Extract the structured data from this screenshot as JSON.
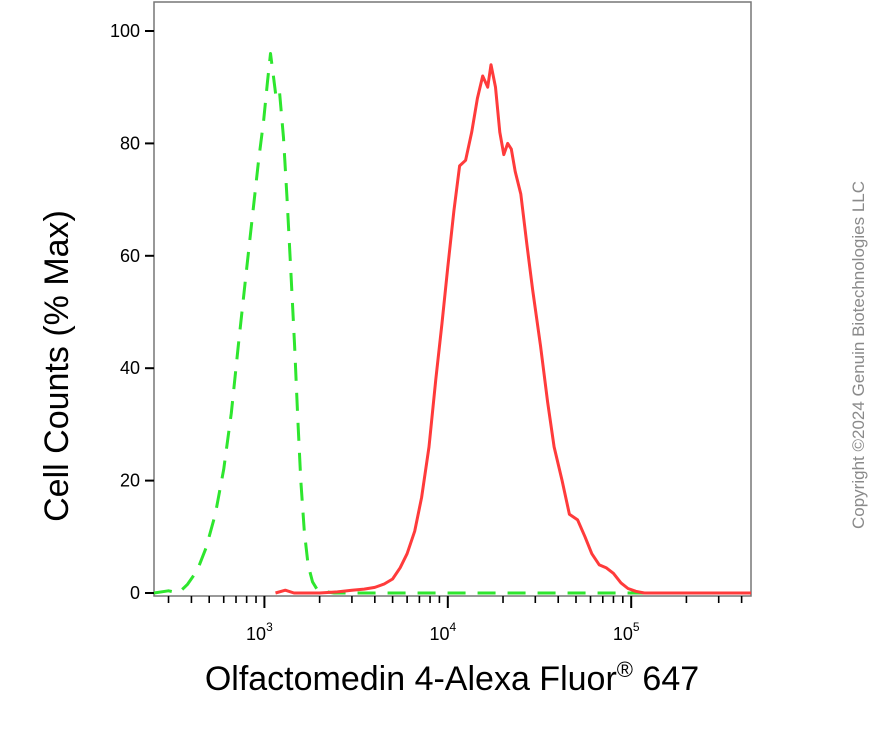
{
  "chart_data": {
    "type": "line",
    "title": "",
    "xlabel_main": "Olfactomedin 4-Alexa Fluor",
    "xlabel_reg": "®",
    "xlabel_tail": " 647",
    "ylabel": "Cell Counts (% Max)",
    "x_scale": "log",
    "xlim": [
      250,
      450000
    ],
    "ylim": [
      0,
      100
    ],
    "y_ticks": [
      0,
      20,
      40,
      60,
      80,
      100
    ],
    "y_tick_labels": [
      "0",
      "20",
      "40",
      "60",
      "80",
      "100"
    ],
    "x_major_ticks": [
      {
        "value": 1000,
        "base": "10",
        "exp": "3"
      },
      {
        "value": 10000,
        "base": "10",
        "exp": "4"
      },
      {
        "value": 100000,
        "base": "10",
        "exp": "5"
      }
    ],
    "grid": false,
    "legend": "none",
    "series": [
      {
        "style": "dashed",
        "color": "#2ee62e",
        "points": [
          [
            250,
            0
          ],
          [
            300,
            0.4
          ],
          [
            340,
            0
          ],
          [
            380,
            1.5
          ],
          [
            430,
            4
          ],
          [
            480,
            8
          ],
          [
            540,
            14
          ],
          [
            600,
            22
          ],
          [
            660,
            32
          ],
          [
            720,
            44
          ],
          [
            790,
            56
          ],
          [
            860,
            67
          ],
          [
            930,
            77
          ],
          [
            990,
            84
          ],
          [
            1040,
            91
          ],
          [
            1080,
            96
          ],
          [
            1120,
            92
          ],
          [
            1160,
            88
          ],
          [
            1210,
            89
          ],
          [
            1270,
            81
          ],
          [
            1330,
            70
          ],
          [
            1400,
            56
          ],
          [
            1460,
            44
          ],
          [
            1520,
            31
          ],
          [
            1580,
            20
          ],
          [
            1650,
            11
          ],
          [
            1730,
            5
          ],
          [
            1830,
            2
          ],
          [
            1950,
            0.5
          ],
          [
            2100,
            0.3
          ],
          [
            2400,
            0
          ],
          [
            450000,
            0
          ]
        ]
      },
      {
        "style": "solid",
        "color": "#ff3b3b",
        "points": [
          [
            1150,
            0
          ],
          [
            1300,
            0.5
          ],
          [
            1450,
            0
          ],
          [
            2000,
            0
          ],
          [
            2500,
            0.2
          ],
          [
            3000,
            0.5
          ],
          [
            3500,
            0.7
          ],
          [
            4000,
            1
          ],
          [
            4500,
            1.6
          ],
          [
            5000,
            2.5
          ],
          [
            5500,
            4.5
          ],
          [
            6000,
            7
          ],
          [
            6600,
            11
          ],
          [
            7200,
            17
          ],
          [
            7900,
            26
          ],
          [
            8600,
            38
          ],
          [
            9300,
            48
          ],
          [
            10000,
            58
          ],
          [
            10800,
            68
          ],
          [
            11600,
            76
          ],
          [
            12500,
            77
          ],
          [
            13500,
            82
          ],
          [
            14500,
            88
          ],
          [
            15500,
            92
          ],
          [
            16500,
            90
          ],
          [
            17200,
            94
          ],
          [
            18200,
            90
          ],
          [
            19200,
            82
          ],
          [
            20200,
            78
          ],
          [
            21200,
            80
          ],
          [
            22200,
            79
          ],
          [
            23300,
            75
          ],
          [
            25000,
            71
          ],
          [
            27000,
            62
          ],
          [
            29000,
            54
          ],
          [
            32000,
            44
          ],
          [
            35000,
            34
          ],
          [
            38000,
            26
          ],
          [
            42000,
            20
          ],
          [
            46000,
            14
          ],
          [
            51000,
            13
          ],
          [
            56000,
            10
          ],
          [
            61000,
            7
          ],
          [
            67000,
            5
          ],
          [
            73000,
            4.5
          ],
          [
            80000,
            3.5
          ],
          [
            88000,
            1.8
          ],
          [
            96000,
            0.8
          ],
          [
            106000,
            0.3
          ],
          [
            118000,
            0
          ],
          [
            450000,
            0
          ]
        ]
      }
    ]
  },
  "watermark": "Copyright ©2024 Genuin Biotechnologies LLC"
}
